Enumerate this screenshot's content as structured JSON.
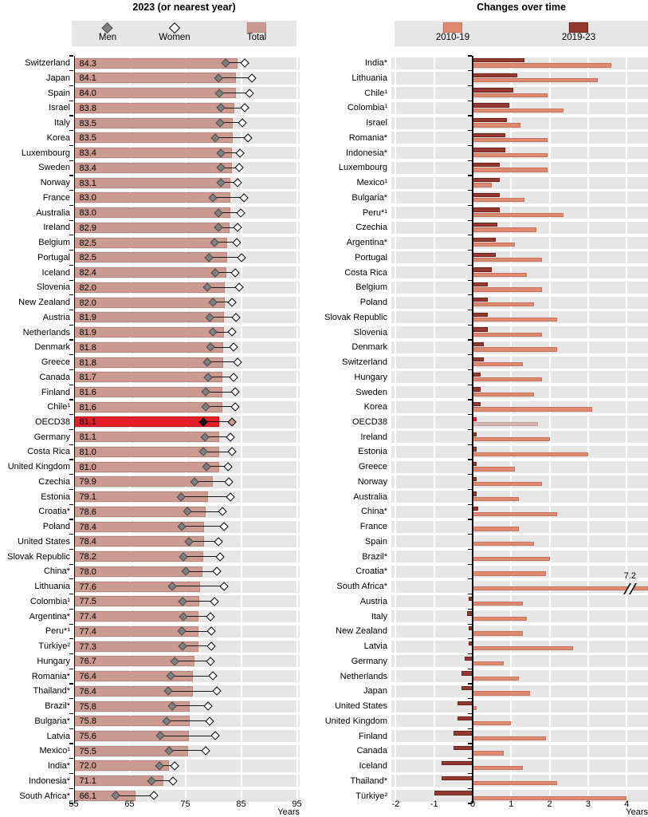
{
  "chart_data": [
    {
      "type": "bar",
      "title": "2023 (or nearest year)",
      "orientation": "horizontal",
      "xlabel": "Years",
      "xlim": [
        55,
        95
      ],
      "xticks": [
        55,
        65,
        75,
        85,
        95
      ],
      "legend": [
        "Men",
        "Women",
        "Total"
      ],
      "highlight": "OECD38",
      "rows": [
        {
          "country": "Switzerland",
          "total": 84.3,
          "men": 82.2,
          "women": 85.7
        },
        {
          "country": "Japan",
          "total": 84.1,
          "men": 81.0,
          "women": 86.9
        },
        {
          "country": "Spain",
          "total": 84.0,
          "men": 81.1,
          "women": 86.5
        },
        {
          "country": "Israel",
          "total": 83.8,
          "men": 81.4,
          "women": 85.6
        },
        {
          "country": "Italy",
          "total": 83.5,
          "men": 81.2,
          "women": 85.2
        },
        {
          "country": "Korea",
          "total": 83.5,
          "men": 80.3,
          "women": 86.2
        },
        {
          "country": "Luxembourg",
          "total": 83.4,
          "men": 81.4,
          "women": 84.8
        },
        {
          "country": "Sweden",
          "total": 83.4,
          "men": 81.4,
          "women": 84.7
        },
        {
          "country": "Norway",
          "total": 83.1,
          "men": 81.3,
          "women": 84.4
        },
        {
          "country": "France",
          "total": 83.0,
          "men": 79.9,
          "women": 85.5
        },
        {
          "country": "Australia",
          "total": 83.0,
          "men": 81.0,
          "women": 84.9
        },
        {
          "country": "Ireland",
          "total": 82.9,
          "men": 80.9,
          "women": 84.3
        },
        {
          "country": "Belgium",
          "total": 82.5,
          "men": 80.2,
          "women": 84.2
        },
        {
          "country": "Portugal",
          "total": 82.5,
          "men": 79.2,
          "women": 85.1
        },
        {
          "country": "Iceland",
          "total": 82.4,
          "men": 80.4,
          "women": 84.0
        },
        {
          "country": "Slovenia",
          "total": 82.0,
          "men": 78.9,
          "women": 84.7
        },
        {
          "country": "New Zealand",
          "total": 82.0,
          "men": 79.9,
          "women": 83.4
        },
        {
          "country": "Austria",
          "total": 81.9,
          "men": 79.3,
          "women": 84.1
        },
        {
          "country": "Netherlands",
          "total": 81.9,
          "men": 80.0,
          "women": 83.4
        },
        {
          "country": "Denmark",
          "total": 81.8,
          "men": 79.5,
          "women": 83.6
        },
        {
          "country": "Greece",
          "total": 81.8,
          "men": 78.9,
          "women": 84.3
        },
        {
          "country": "Canada",
          "total": 81.7,
          "men": 79.1,
          "women": 83.7
        },
        {
          "country": "Finland",
          "total": 81.6,
          "men": 78.6,
          "women": 84.0
        },
        {
          "country": "Chile¹",
          "total": 81.6,
          "men": 78.6,
          "women": 84.0
        },
        {
          "country": "OECD38",
          "total": 81.1,
          "men": 78.2,
          "women": 83.4
        },
        {
          "country": "Germany",
          "total": 81.1,
          "men": 78.5,
          "women": 83.1
        },
        {
          "country": "Costa Rica",
          "total": 81.0,
          "men": 78.2,
          "women": 83.4
        },
        {
          "country": "United Kingdom",
          "total": 81.0,
          "men": 78.8,
          "women": 82.7
        },
        {
          "country": "Czechia",
          "total": 79.9,
          "men": 76.6,
          "women": 82.8
        },
        {
          "country": "Estonia",
          "total": 79.1,
          "men": 74.2,
          "women": 83.1
        },
        {
          "country": "Croatia*",
          "total": 78.6,
          "men": 75.4,
          "women": 81.6
        },
        {
          "country": "Poland",
          "total": 78.4,
          "men": 74.4,
          "women": 81.9
        },
        {
          "country": "United States",
          "total": 78.4,
          "men": 75.7,
          "women": 80.9
        },
        {
          "country": "Slovak Republic",
          "total": 78.2,
          "men": 74.6,
          "women": 81.2
        },
        {
          "country": "China*",
          "total": 78.0,
          "men": 75.1,
          "women": 80.7
        },
        {
          "country": "Lithuania",
          "total": 77.6,
          "men": 72.7,
          "women": 81.9
        },
        {
          "country": "Colombia¹",
          "total": 77.5,
          "men": 74.5,
          "women": 80.2
        },
        {
          "country": "Argentina*",
          "total": 77.4,
          "men": 74.6,
          "women": 79.5
        },
        {
          "country": "Peru*¹",
          "total": 77.4,
          "men": 74.4,
          "women": 79.6
        },
        {
          "country": "Türkiye²",
          "total": 77.3,
          "men": 74.5,
          "women": 79.7
        },
        {
          "country": "Hungary",
          "total": 76.7,
          "men": 73.1,
          "women": 79.5
        },
        {
          "country": "Romania*",
          "total": 76.4,
          "men": 72.3,
          "women": 80.0
        },
        {
          "country": "Thailand*",
          "total": 76.4,
          "men": 72.0,
          "women": 80.6
        },
        {
          "country": "Brazil*",
          "total": 75.8,
          "men": 72.6,
          "women": 79.1
        },
        {
          "country": "Bulgaria*",
          "total": 75.8,
          "men": 71.7,
          "women": 79.3
        },
        {
          "country": "Latvia",
          "total": 75.6,
          "men": 70.5,
          "women": 80.4
        },
        {
          "country": "Mexico¹",
          "total": 75.5,
          "men": 72.1,
          "women": 78.6
        },
        {
          "country": "India*",
          "total": 72.0,
          "men": 70.4,
          "women": 73.1
        },
        {
          "country": "Indonesia*",
          "total": 71.1,
          "men": 68.9,
          "women": 72.8
        },
        {
          "country": "South Africa*",
          "total": 66.1,
          "men": 62.5,
          "women": 69.4
        }
      ]
    },
    {
      "type": "bar",
      "title": "Changes over time",
      "orientation": "horizontal",
      "xlabel": "Years",
      "xlim": [
        -2,
        4
      ],
      "xticks": [
        -2,
        -1,
        0,
        1,
        2,
        3,
        4
      ],
      "legend": [
        "2010-19",
        "2019-23"
      ],
      "highlight": "OECD38",
      "outlier_note": {
        "country": "South Africa*",
        "series": "2010-19",
        "value_label": "7.2"
      },
      "rows": [
        {
          "country": "India*",
          "change_2010_19": 3.6,
          "change_2019_23": 1.35
        },
        {
          "country": "Lithuania",
          "change_2010_19": 3.25,
          "change_2019_23": 1.15
        },
        {
          "country": "Chile¹",
          "change_2010_19": 1.95,
          "change_2019_23": 1.05
        },
        {
          "country": "Colombia¹",
          "change_2010_19": 2.35,
          "change_2019_23": 0.95
        },
        {
          "country": "Israel",
          "change_2010_19": 1.25,
          "change_2019_23": 0.9
        },
        {
          "country": "Romania*",
          "change_2010_19": 1.95,
          "change_2019_23": 0.85
        },
        {
          "country": "Indonesia*",
          "change_2010_19": 1.95,
          "change_2019_23": 0.85
        },
        {
          "country": "Luxembourg",
          "change_2010_19": 1.95,
          "change_2019_23": 0.7
        },
        {
          "country": "Mexico¹",
          "change_2010_19": 0.5,
          "change_2019_23": 0.7
        },
        {
          "country": "Bulgaria*",
          "change_2010_19": 1.35,
          "change_2019_23": 0.7
        },
        {
          "country": "Peru*¹",
          "change_2010_19": 2.35,
          "change_2019_23": 0.7
        },
        {
          "country": "Czechia",
          "change_2010_19": 1.65,
          "change_2019_23": 0.65
        },
        {
          "country": "Argentina*",
          "change_2010_19": 1.1,
          "change_2019_23": 0.6
        },
        {
          "country": "Portugal",
          "change_2010_19": 1.8,
          "change_2019_23": 0.6
        },
        {
          "country": "Costa Rica",
          "change_2010_19": 1.4,
          "change_2019_23": 0.5
        },
        {
          "country": "Belgium",
          "change_2010_19": 1.8,
          "change_2019_23": 0.4
        },
        {
          "country": "Poland",
          "change_2010_19": 1.6,
          "change_2019_23": 0.4
        },
        {
          "country": "Slovak Republic",
          "change_2010_19": 2.2,
          "change_2019_23": 0.4
        },
        {
          "country": "Slovenia",
          "change_2010_19": 1.8,
          "change_2019_23": 0.4
        },
        {
          "country": "Denmark",
          "change_2010_19": 2.2,
          "change_2019_23": 0.3
        },
        {
          "country": "Switzerland",
          "change_2010_19": 1.3,
          "change_2019_23": 0.3
        },
        {
          "country": "Hungary",
          "change_2010_19": 1.8,
          "change_2019_23": 0.2
        },
        {
          "country": "Sweden",
          "change_2010_19": 1.6,
          "change_2019_23": 0.2
        },
        {
          "country": "Korea",
          "change_2010_19": 3.1,
          "change_2019_23": 0.2
        },
        {
          "country": "OECD38",
          "change_2010_19": 1.7,
          "change_2019_23": 0.1
        },
        {
          "country": "Ireland",
          "change_2010_19": 2.0,
          "change_2019_23": 0.1
        },
        {
          "country": "Estonia",
          "change_2010_19": 3.0,
          "change_2019_23": 0.1
        },
        {
          "country": "Greece",
          "change_2010_19": 1.1,
          "change_2019_23": 0.1
        },
        {
          "country": "Norway",
          "change_2010_19": 1.8,
          "change_2019_23": 0.1
        },
        {
          "country": "Australia",
          "change_2010_19": 1.2,
          "change_2019_23": 0.1
        },
        {
          "country": "China*",
          "change_2010_19": 2.2,
          "change_2019_23": 0.15
        },
        {
          "country": "France",
          "change_2010_19": 1.2,
          "change_2019_23": 0.0
        },
        {
          "country": "Spain",
          "change_2010_19": 1.6,
          "change_2019_23": 0.0
        },
        {
          "country": "Brazil*",
          "change_2010_19": 2.0,
          "change_2019_23": 0.0
        },
        {
          "country": "Croatia*",
          "change_2010_19": 1.9,
          "change_2019_23": 0.0
        },
        {
          "country": "South Africa*",
          "change_2010_19": 7.2,
          "change_2019_23": 0.0
        },
        {
          "country": "Austria",
          "change_2010_19": 1.3,
          "change_2019_23": -0.1
        },
        {
          "country": "Italy",
          "change_2010_19": 1.4,
          "change_2019_23": -0.15
        },
        {
          "country": "New Zealand",
          "change_2010_19": 1.3,
          "change_2019_23": -0.1
        },
        {
          "country": "Latvia",
          "change_2010_19": 2.6,
          "change_2019_23": -0.1
        },
        {
          "country": "Germany",
          "change_2010_19": 0.8,
          "change_2019_23": -0.2
        },
        {
          "country": "Netherlands",
          "change_2010_19": 1.2,
          "change_2019_23": -0.3
        },
        {
          "country": "Japan",
          "change_2010_19": 1.5,
          "change_2019_23": -0.3
        },
        {
          "country": "United States",
          "change_2010_19": 0.1,
          "change_2019_23": -0.4
        },
        {
          "country": "United Kingdom",
          "change_2010_19": 1.0,
          "change_2019_23": -0.4
        },
        {
          "country": "Finland",
          "change_2010_19": 1.9,
          "change_2019_23": -0.5
        },
        {
          "country": "Canada",
          "change_2010_19": 0.8,
          "change_2019_23": -0.5
        },
        {
          "country": "Iceland",
          "change_2010_19": 1.3,
          "change_2019_23": -0.8
        },
        {
          "country": "Thailand*",
          "change_2010_19": 2.2,
          "change_2019_23": -0.8
        },
        {
          "country": "Türkiye²",
          "change_2010_19": 4.0,
          "change_2019_23": -1.0
        }
      ]
    }
  ],
  "colors": {
    "total_bar": "#cb9b90",
    "total_bar_border": "#b5897f",
    "bar_2010_19": "#dd8a70",
    "bar_2010_19_border": "#c7725a",
    "bar_2019_23": "#93392d",
    "bar_2019_23_border": "#6e241d",
    "highlight_red": "#e41f2b",
    "highlight_red_border": "#c01018",
    "highlight_pale_bar": "#d3b5ad",
    "highlight_pale_border": "#c0a29a",
    "men_marker": "#808080",
    "women_marker_fill": "#ffffff",
    "oecd_men_marker": "#111111",
    "oecd_women_marker_fill": "#cf9b92",
    "band_background": "#e6e6e6",
    "legend_background": "#e6e6e6"
  }
}
